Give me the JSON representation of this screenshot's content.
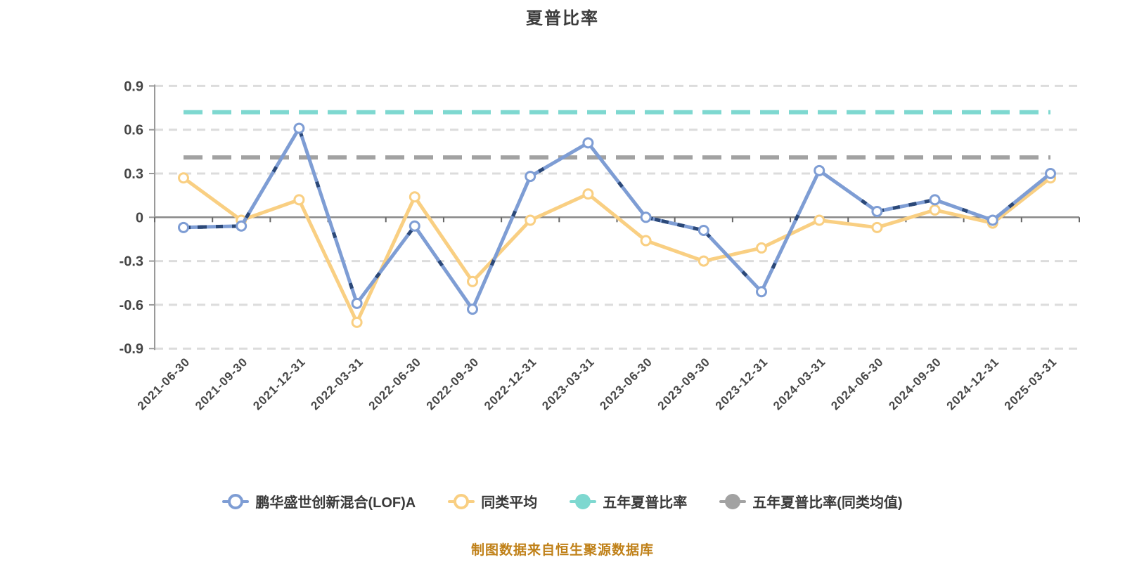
{
  "header": {
    "title": "夏普比率"
  },
  "footer": {
    "source_note": "制图数据来自恒生聚源数据库",
    "color": "#c08119"
  },
  "legend": [
    {
      "label": "鹏华盛世创新混合(LOF)A",
      "color": "#7e9dd4",
      "marker": "ring"
    },
    {
      "label": "同类平均",
      "color": "#f9cf82",
      "marker": "ring"
    },
    {
      "label": "五年夏普比率",
      "color": "#7ed8d0",
      "marker": "dot"
    },
    {
      "label": "五年夏普比率(同类均值)",
      "color": "#a2a2a2",
      "marker": "dot"
    }
  ],
  "chart_data": {
    "type": "line",
    "title": "夏普比率",
    "categories": [
      "2021-06-30",
      "2021-09-30",
      "2021-12-31",
      "2022-03-31",
      "2022-06-30",
      "2022-09-30",
      "2022-12-31",
      "2023-03-31",
      "2023-06-30",
      "2023-09-30",
      "2023-12-31",
      "2024-03-31",
      "2024-06-30",
      "2024-09-30",
      "2024-12-31",
      "2025-03-31"
    ],
    "yticks": [
      0.9,
      0.6,
      0.3,
      0,
      -0.3,
      -0.6,
      -0.9
    ],
    "ylim": [
      -0.9,
      0.9
    ],
    "grid": "horizontal-dashed",
    "legend_position": "bottom",
    "series": [
      {
        "name": "鹏华盛世创新混合(LOF)A",
        "type": "line",
        "color": "#7e9dd4",
        "dash_overlay_color": "#2b4878",
        "dashed_segment_indices": [
          0,
          8,
          12
        ],
        "values": [
          -0.07,
          -0.06,
          0.61,
          -0.59,
          -0.06,
          -0.63,
          0.28,
          0.51,
          0.0,
          -0.09,
          -0.51,
          0.32,
          0.04,
          0.12,
          -0.02,
          0.3
        ]
      },
      {
        "name": "同类平均",
        "type": "line",
        "color": "#f9cf82",
        "values": [
          0.27,
          -0.02,
          0.12,
          -0.72,
          0.14,
          -0.44,
          -0.02,
          0.16,
          -0.16,
          -0.3,
          -0.21,
          -0.02,
          -0.07,
          0.05,
          -0.04,
          0.27
        ]
      },
      {
        "name": "五年夏普比率",
        "type": "hline",
        "color": "#7ed8d0",
        "value": 0.72
      },
      {
        "name": "五年夏普比率(同类均值)",
        "type": "hline",
        "color": "#a2a2a2",
        "value": 0.41
      }
    ]
  }
}
